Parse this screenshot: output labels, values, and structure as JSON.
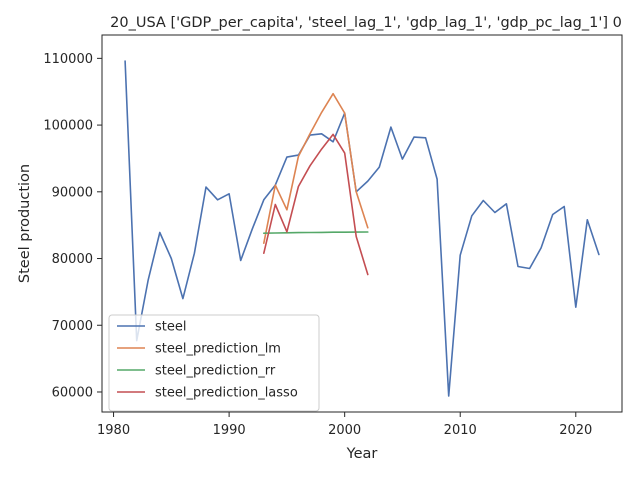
{
  "chart_data": {
    "type": "line",
    "title": "20_USA ['GDP_per_capita', 'steel_lag_1', 'gdp_lag_1', 'gdp_pc_lag_1'] 0",
    "xlabel": "Year",
    "ylabel": "Steel production",
    "xlim": [
      1979,
      2024
    ],
    "ylim": [
      57000,
      113500
    ],
    "xticks": [
      1980,
      1990,
      2000,
      2010,
      2020
    ],
    "yticks": [
      60000,
      70000,
      80000,
      90000,
      100000,
      110000
    ],
    "grid": false,
    "legend_position": "lower-left",
    "series": [
      {
        "name": "steel",
        "color": "#4c72b0",
        "x": [
          1981,
          1982,
          1983,
          1984,
          1985,
          1986,
          1987,
          1988,
          1989,
          1990,
          1991,
          1992,
          1993,
          1994,
          1995,
          1996,
          1997,
          1998,
          1999,
          2000,
          2001,
          2002,
          2003,
          2004,
          2005,
          2006,
          2007,
          2008,
          2009,
          2010,
          2011,
          2012,
          2013,
          2014,
          2015,
          2016,
          2017,
          2018,
          2019,
          2020,
          2021,
          2022
        ],
        "y": [
          109600,
          67700,
          76800,
          83900,
          80000,
          74000,
          80800,
          90700,
          88800,
          89700,
          79700,
          84400,
          88800,
          91000,
          95200,
          95500,
          98500,
          98700,
          97500,
          101800,
          90000,
          91600,
          93700,
          99700,
          94900,
          98200,
          98100,
          91900,
          59400,
          80500,
          86400,
          88700,
          86900,
          88200,
          78800,
          78500,
          81600,
          86600,
          87800,
          72700,
          85800,
          80600
        ]
      },
      {
        "name": "steel_prediction_lm",
        "color": "#dd8452",
        "x": [
          1993,
          1994,
          1995,
          1996,
          1997,
          1998,
          1999,
          2000,
          2001,
          2002
        ],
        "y": [
          82300,
          91000,
          87300,
          95300,
          98700,
          101900,
          104700,
          101800,
          90000,
          84600
        ]
      },
      {
        "name": "steel_prediction_rr",
        "color": "#55a868",
        "x": [
          1993,
          1994,
          1995,
          1996,
          1997,
          1998,
          1999,
          2000,
          2001,
          2002
        ],
        "y": [
          83800,
          83830,
          83860,
          83880,
          83900,
          83920,
          83940,
          83950,
          83960,
          83970
        ]
      },
      {
        "name": "steel_prediction_lasso",
        "color": "#c44e52",
        "x": [
          1993,
          1994,
          1995,
          1996,
          1997,
          1998,
          1999,
          2000,
          2001,
          2002
        ],
        "y": [
          80800,
          88100,
          84000,
          90800,
          93900,
          96400,
          98600,
          95800,
          83300,
          77600
        ]
      }
    ]
  }
}
